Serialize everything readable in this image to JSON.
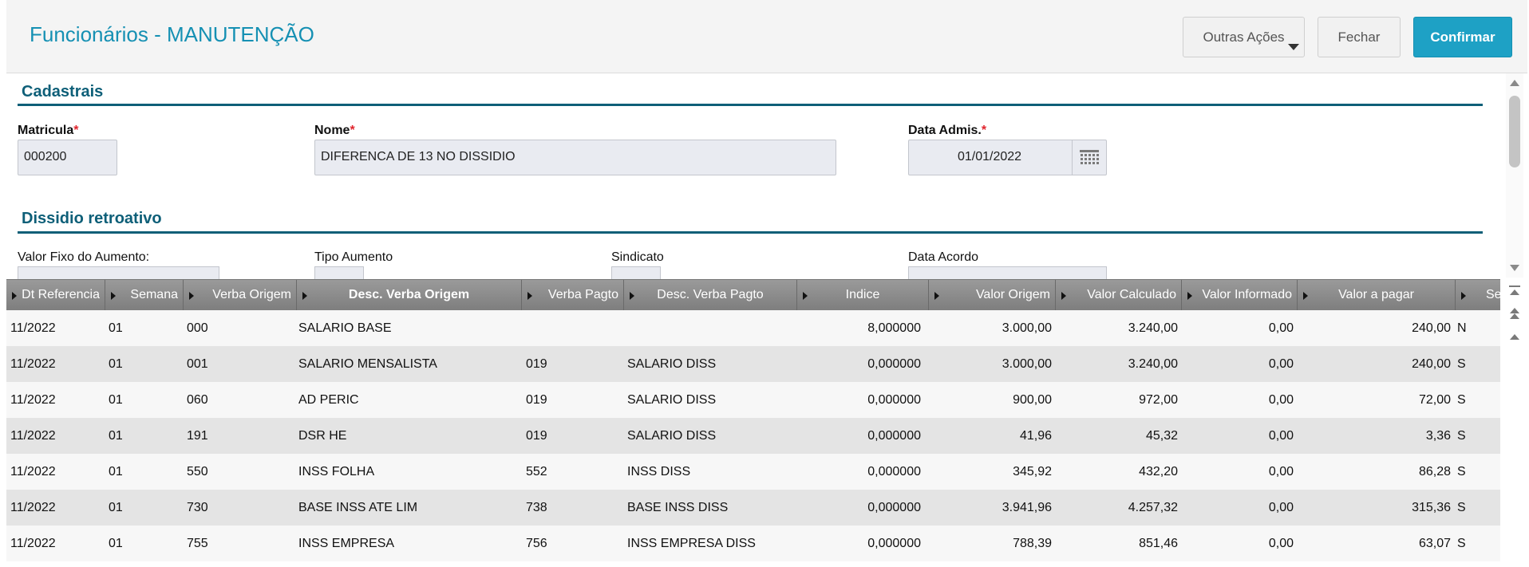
{
  "header": {
    "title": "Funcionários - MANUTENÇÃO",
    "outras_acoes": "Outras Ações",
    "fechar": "Fechar",
    "confirmar": "Confirmar"
  },
  "cadastrais": {
    "section_title": "Cadastrais",
    "matricula_label": "Matricula",
    "matricula_value": "000200",
    "nome_label": "Nome",
    "nome_value": "DIFERENCA DE 13 NO DISSIDIO",
    "data_admis_label": "Data Admis.",
    "data_admis_value": "01/01/2022",
    "required_mark": "*"
  },
  "dissidio": {
    "section_title": "Dissidio retroativo",
    "valor_fixo_label": "Valor Fixo do Aumento:",
    "tipo_aumento_label": "Tipo Aumento",
    "sindicato_label": "Sindicato",
    "data_acordo_label": "Data Acordo"
  },
  "grid": {
    "columns": [
      "Dt Referencia",
      "Semana",
      "Verba Origem",
      "Desc. Verba Origem",
      "Verba Pagto",
      "Desc. Verba Pagto",
      "Indice",
      "Valor Origem",
      "Valor Calculado",
      "Valor Informado",
      "Valor a pagar",
      "Se"
    ],
    "rows": [
      [
        "11/2022",
        "01",
        "000",
        "SALARIO BASE",
        "",
        "",
        "8,000000",
        "3.000,00",
        "3.240,00",
        "0,00",
        "240,00",
        "N"
      ],
      [
        "11/2022",
        "01",
        "001",
        "SALARIO MENSALISTA",
        "019",
        "SALARIO DISS",
        "0,000000",
        "3.000,00",
        "3.240,00",
        "0,00",
        "240,00",
        "S"
      ],
      [
        "11/2022",
        "01",
        "060",
        "AD PERIC",
        "019",
        "SALARIO DISS",
        "0,000000",
        "900,00",
        "972,00",
        "0,00",
        "72,00",
        "S"
      ],
      [
        "11/2022",
        "01",
        "191",
        "DSR HE",
        "019",
        "SALARIO DISS",
        "0,000000",
        "41,96",
        "45,32",
        "0,00",
        "3,36",
        "S"
      ],
      [
        "11/2022",
        "01",
        "550",
        "INSS FOLHA",
        "552",
        "INSS DISS",
        "0,000000",
        "345,92",
        "432,20",
        "0,00",
        "86,28",
        "S"
      ],
      [
        "11/2022",
        "01",
        "730",
        "BASE INSS ATE LIM",
        "738",
        "BASE INSS DISS",
        "0,000000",
        "3.941,96",
        "4.257,32",
        "0,00",
        "315,36",
        "S"
      ],
      [
        "11/2022",
        "01",
        "755",
        "INSS EMPRESA",
        "756",
        "INSS EMPRESA DISS",
        "0,000000",
        "788,39",
        "851,46",
        "0,00",
        "63,07",
        "S"
      ]
    ]
  },
  "icons": {
    "calendar": "calendar-icon",
    "dropdown": "chevron-down-icon",
    "sort": "sort-triangle-icon"
  },
  "colors": {
    "title": "#1590b3",
    "section": "#0e5f78",
    "confirm": "#1ea1c5",
    "required": "#e0242c"
  }
}
